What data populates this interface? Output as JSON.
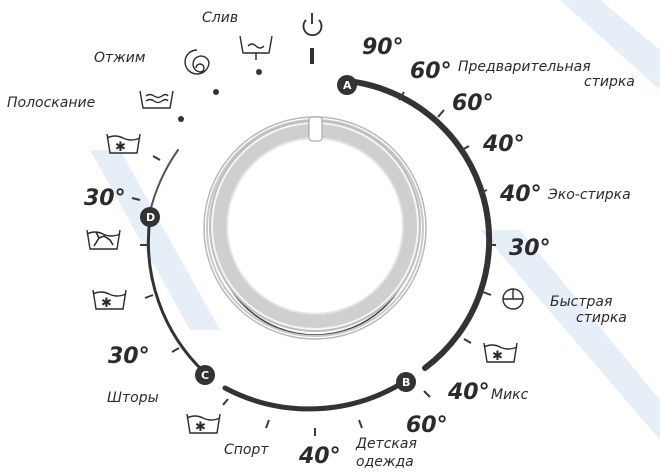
{
  "labels": {
    "drain": "Слив",
    "spin": "Отжим",
    "rinse": "Полоскание",
    "prewash_line1": "Предварительная",
    "prewash_line2": "стирка",
    "eco": "Эко-стирка",
    "quick_line1": "Быстрая",
    "quick_line2": "стирка",
    "mix": "Микс",
    "kids_line1": "Детская",
    "kids_line2": "одежда",
    "sport": "Спорт",
    "curtains": "Шторы"
  },
  "temps": {
    "t90": "90°",
    "t60_prewash": "60°",
    "t60_cotton": "60°",
    "t40_cotton": "40°",
    "t40_eco": "40°",
    "t30_cotton": "30°",
    "t40_mix": "40°",
    "t60_kids": "60°",
    "t40_sport": "40°",
    "t30_curtains": "30°",
    "t30_hand": "30°"
  },
  "markers": {
    "a": "A",
    "b": "B",
    "c": "C",
    "d": "D"
  },
  "icons": [
    "power-icon",
    "drain-icon",
    "spin-icon",
    "rinse-icon",
    "cold-wash-icon",
    "hand-wash-icon",
    "timer-icon"
  ],
  "colors": {
    "accent": "#333333",
    "dial_rim": "#cfcfcf"
  }
}
